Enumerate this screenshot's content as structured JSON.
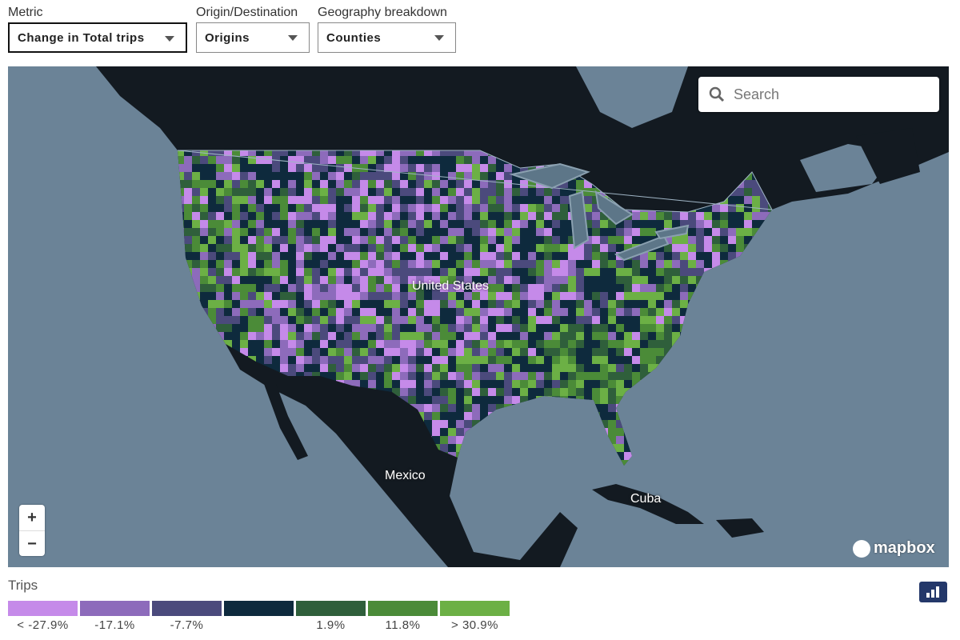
{
  "controls": [
    {
      "label": "Metric",
      "value": "Change in Total trips"
    },
    {
      "label": "Origin/Destination",
      "value": "Origins"
    },
    {
      "label": "Geography breakdown",
      "value": "Counties"
    }
  ],
  "search": {
    "placeholder": "Search"
  },
  "map": {
    "labels": [
      {
        "text": "United States"
      },
      {
        "text": "Mexico"
      },
      {
        "text": "Cuba"
      }
    ],
    "zoom": [
      "+",
      "−"
    ],
    "attribution": "mapbox"
  },
  "legend": {
    "title": "Trips",
    "items": [
      {
        "color": "#c58ae9",
        "label": "< -27.9%"
      },
      {
        "color": "#8d6bbb",
        "label": "-17.1%"
      },
      {
        "color": "#4b4a7c",
        "label": "-7.7%"
      },
      {
        "color": "#0e2a3d"
      },
      {
        "color": "#2f5f3b",
        "label": "1.9%"
      },
      {
        "color": "#4b8b38",
        "label": "11.8%"
      },
      {
        "color": "#6cb045",
        "label": "> 30.9%"
      }
    ]
  }
}
